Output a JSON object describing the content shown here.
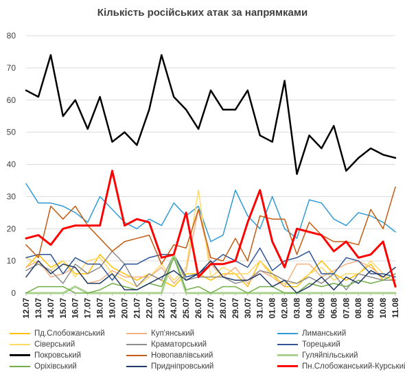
{
  "chart_data": {
    "type": "line",
    "title": "Кількість російських атак за напрямками",
    "xlabel": "",
    "ylabel": "",
    "ylim": [
      0,
      80
    ],
    "yticks": [
      0,
      10,
      20,
      30,
      40,
      50,
      60,
      70,
      80
    ],
    "grid": true,
    "legend_position": "bottom",
    "categories": [
      "12.07",
      "13.07",
      "14.07",
      "15.07",
      "16.07",
      "17.07",
      "18.07",
      "19.07",
      "20.07",
      "21.07",
      "22.07",
      "23.07",
      "24.07",
      "25.07",
      "26.07",
      "27.07",
      "28.07",
      "29.07",
      "30.07",
      "31.07",
      "01.08",
      "02.08",
      "03.08",
      "04.08",
      "05.08",
      "06.08",
      "07.08",
      "08.08",
      "09.08",
      "10.08",
      "11.08"
    ],
    "series": [
      {
        "name": "Пд.Слобожанський",
        "color": "#ffc000",
        "width": 1.5,
        "values": [
          8,
          12,
          8,
          10,
          6,
          6,
          12,
          8,
          6,
          4,
          6,
          4,
          2,
          6,
          6,
          4,
          6,
          6,
          2,
          10,
          6,
          2,
          2,
          6,
          10,
          6,
          4,
          6,
          9,
          4,
          4
        ]
      },
      {
        "name": "Куп'янський",
        "color": "#f4b183",
        "width": 1.5,
        "values": [
          8,
          10,
          5,
          6,
          8,
          3,
          4,
          7,
          5,
          5,
          5,
          8,
          3,
          7,
          26,
          9,
          5,
          8,
          3,
          7,
          5,
          2,
          9,
          9,
          5,
          7,
          9,
          10,
          8,
          5,
          4
        ]
      },
      {
        "name": "Лиманський",
        "color": "#2e9bd6",
        "width": 1.5,
        "values": [
          34,
          28,
          28,
          27,
          25,
          22,
          30,
          26,
          22,
          20,
          23,
          21,
          28,
          24,
          27,
          16,
          18,
          32,
          24,
          20,
          30,
          20,
          17,
          29,
          28,
          23,
          21,
          25,
          24,
          22,
          19
        ]
      },
      {
        "name": "Сіверський",
        "color": "#ffd966",
        "width": 1.5,
        "values": [
          11,
          9,
          7,
          10,
          5,
          10,
          11,
          6,
          4,
          2,
          5,
          9,
          4,
          8,
          32,
          5,
          8,
          6,
          6,
          10,
          5,
          3,
          3,
          6,
          8,
          4,
          6,
          6,
          10,
          6,
          3
        ]
      },
      {
        "name": "Краматорський",
        "color": "#8c8c8c",
        "width": 1.5,
        "values": [
          7,
          9,
          7,
          3,
          9,
          6,
          8,
          13,
          9,
          2,
          6,
          4,
          12,
          4,
          5,
          5,
          5,
          3,
          4,
          7,
          6,
          4,
          3,
          5,
          3,
          6,
          1,
          6,
          5,
          4,
          4
        ]
      },
      {
        "name": "Торецький",
        "color": "#2f5597",
        "width": 1.5,
        "values": [
          11,
          12,
          12,
          6,
          11,
          9,
          9,
          4,
          9,
          9,
          11,
          12,
          12,
          5,
          6,
          9,
          12,
          10,
          8,
          14,
          7,
          10,
          11,
          13,
          6,
          6,
          11,
          10,
          6,
          6,
          5
        ]
      },
      {
        "name": "Покровський",
        "color": "#000000",
        "width": 2.5,
        "values": [
          63,
          61,
          74,
          55,
          60,
          51,
          61,
          47,
          50,
          46,
          57,
          74,
          61,
          57,
          51,
          63,
          57,
          57,
          63,
          49,
          47,
          66,
          37,
          49,
          45,
          52,
          38,
          42,
          45,
          43,
          42
        ]
      },
      {
        "name": "Новопавлівський",
        "color": "#c55a11",
        "width": 1.5,
        "values": [
          15,
          11,
          27,
          23,
          27,
          21,
          17,
          13,
          16,
          17,
          18,
          9,
          15,
          14,
          26,
          11,
          10,
          17,
          10,
          24,
          23,
          23,
          12,
          22,
          18,
          16,
          16,
          15,
          26,
          20,
          33
        ]
      },
      {
        "name": "Гуляйпільський",
        "color": "#a9d18e",
        "width": 3,
        "values": [
          0,
          0,
          0,
          0,
          2,
          0,
          0,
          0,
          0,
          0,
          0,
          0,
          12,
          0,
          0,
          0,
          0,
          0,
          0,
          0,
          0,
          0,
          0,
          0,
          0,
          0,
          0,
          0,
          0,
          0,
          0
        ]
      },
      {
        "name": "Оріхівський",
        "color": "#70ad47",
        "width": 1.5,
        "values": [
          0,
          2,
          2,
          2,
          0,
          0,
          1,
          3,
          2,
          1,
          3,
          2,
          11,
          1,
          2,
          0,
          2,
          2,
          0,
          2,
          2,
          0,
          0,
          3,
          2,
          3,
          2,
          4,
          3,
          4,
          6
        ]
      },
      {
        "name": "Придніпровський",
        "color": "#203864",
        "width": 1.5,
        "values": [
          5,
          10,
          6,
          9,
          8,
          3,
          3,
          6,
          1,
          1,
          3,
          5,
          7,
          4,
          6,
          10,
          5,
          4,
          4,
          6,
          2,
          4,
          0,
          2,
          5,
          1,
          5,
          3,
          7,
          5,
          8
        ]
      },
      {
        "name": "Пн.Слобожанський-Курський",
        "color": "#ff0000",
        "width": 3,
        "values": [
          17,
          18,
          15,
          20,
          21,
          21,
          21,
          38,
          21,
          23,
          22,
          11,
          12,
          25,
          5,
          9,
          9,
          10,
          22,
          32,
          16,
          8,
          20,
          19,
          18,
          13,
          16,
          11,
          12,
          16,
          2
        ]
      }
    ]
  }
}
